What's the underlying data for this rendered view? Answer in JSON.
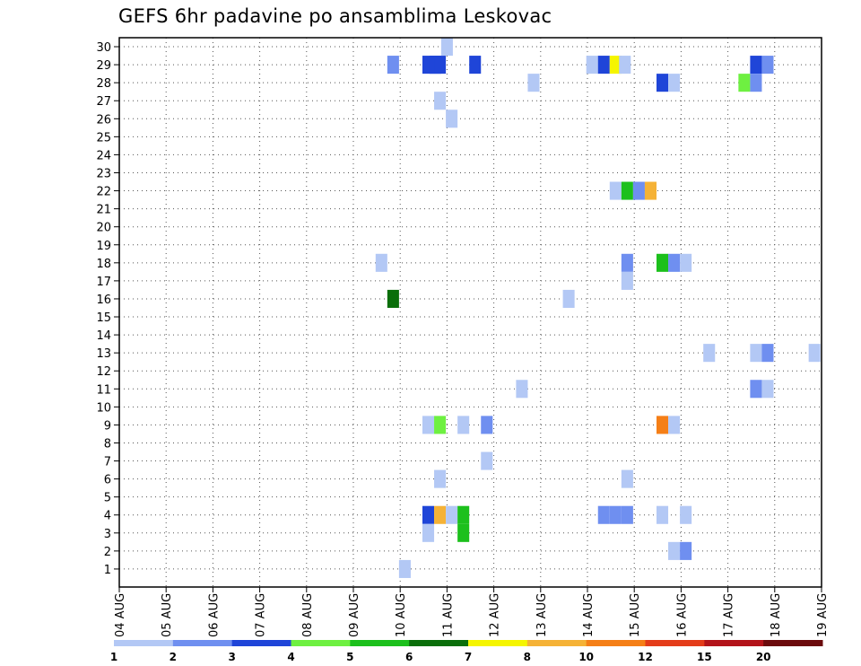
{
  "chart_data": {
    "type": "heatmap",
    "title": "GEFS 6hr padavine po ansamblima Leskovac",
    "x_ticks": [
      "04 AUG",
      "05 AUG",
      "06 AUG",
      "07 AUG",
      "08 AUG",
      "09 AUG",
      "10 AUG",
      "11 AUG",
      "12 AUG",
      "13 AUG",
      "14 AUG",
      "15 AUG",
      "16 AUG",
      "17 AUG",
      "18 AUG",
      "19 AUG"
    ],
    "y_ticks": [
      1,
      2,
      3,
      4,
      5,
      6,
      7,
      8,
      9,
      10,
      11,
      12,
      13,
      14,
      15,
      16,
      17,
      18,
      19,
      20,
      21,
      22,
      23,
      24,
      25,
      26,
      27,
      28,
      29,
      30
    ],
    "x_range_days": [
      0,
      15
    ],
    "y_range": [
      0,
      30.5
    ],
    "grid": true,
    "colorbar": {
      "labels": [
        "1",
        "2",
        "3",
        "4",
        "5",
        "6",
        "7",
        "8",
        "10",
        "12",
        "15",
        "20"
      ],
      "colors": [
        "#b3c8f5",
        "#6f8ff0",
        "#1f45d8",
        "#6ef041",
        "#1cc01c",
        "#0a6e0a",
        "#f5f500",
        "#f5b236",
        "#f57f17",
        "#e43c1a",
        "#b3141a",
        "#6b0b0d"
      ]
    },
    "cells": [
      {
        "day": 7.0,
        "member": 30,
        "color": "#b3c8f5"
      },
      {
        "day": 5.85,
        "member": 29,
        "color": "#6f8ff0"
      },
      {
        "day": 6.6,
        "member": 29,
        "color": "#1f45d8"
      },
      {
        "day": 6.75,
        "member": 29,
        "color": "#1f45d8"
      },
      {
        "day": 6.85,
        "member": 29,
        "color": "#1f45d8"
      },
      {
        "day": 7.6,
        "member": 29,
        "color": "#1f45d8"
      },
      {
        "day": 10.1,
        "member": 29,
        "color": "#b3c8f5"
      },
      {
        "day": 10.35,
        "member": 29,
        "color": "#1f45d8"
      },
      {
        "day": 10.6,
        "member": 29,
        "color": "#f5f500"
      },
      {
        "day": 10.8,
        "member": 29,
        "color": "#b3c8f5"
      },
      {
        "day": 13.6,
        "member": 29,
        "color": "#1f45d8"
      },
      {
        "day": 13.85,
        "member": 29,
        "color": "#6f8ff0"
      },
      {
        "day": 8.85,
        "member": 28,
        "color": "#b3c8f5"
      },
      {
        "day": 11.6,
        "member": 28,
        "color": "#1f45d8"
      },
      {
        "day": 11.85,
        "member": 28,
        "color": "#b3c8f5"
      },
      {
        "day": 13.35,
        "member": 28,
        "color": "#6ef041"
      },
      {
        "day": 13.6,
        "member": 28,
        "color": "#6f8ff0"
      },
      {
        "day": 6.85,
        "member": 27,
        "color": "#b3c8f5"
      },
      {
        "day": 7.1,
        "member": 26,
        "color": "#b3c8f5"
      },
      {
        "day": 10.6,
        "member": 22,
        "color": "#b3c8f5"
      },
      {
        "day": 10.85,
        "member": 22,
        "color": "#1cc01c"
      },
      {
        "day": 11.1,
        "member": 22,
        "color": "#6f8ff0"
      },
      {
        "day": 11.35,
        "member": 22,
        "color": "#f5b236"
      },
      {
        "day": 5.6,
        "member": 18,
        "color": "#b3c8f5"
      },
      {
        "day": 10.85,
        "member": 18,
        "color": "#6f8ff0"
      },
      {
        "day": 11.6,
        "member": 18,
        "color": "#1cc01c"
      },
      {
        "day": 11.85,
        "member": 18,
        "color": "#6f8ff0"
      },
      {
        "day": 12.1,
        "member": 18,
        "color": "#b3c8f5"
      },
      {
        "day": 10.85,
        "member": 17,
        "color": "#b3c8f5"
      },
      {
        "day": 5.85,
        "member": 16,
        "color": "#0a6e0a"
      },
      {
        "day": 9.6,
        "member": 16,
        "color": "#b3c8f5"
      },
      {
        "day": 12.6,
        "member": 13,
        "color": "#b3c8f5"
      },
      {
        "day": 13.6,
        "member": 13,
        "color": "#b3c8f5"
      },
      {
        "day": 13.85,
        "member": 13,
        "color": "#6f8ff0"
      },
      {
        "day": 14.85,
        "member": 13,
        "color": "#b3c8f5"
      },
      {
        "day": 8.6,
        "member": 11,
        "color": "#b3c8f5"
      },
      {
        "day": 13.6,
        "member": 11,
        "color": "#6f8ff0"
      },
      {
        "day": 13.85,
        "member": 11,
        "color": "#b3c8f5"
      },
      {
        "day": 6.6,
        "member": 9,
        "color": "#b3c8f5"
      },
      {
        "day": 6.85,
        "member": 9,
        "color": "#6ef041"
      },
      {
        "day": 7.35,
        "member": 9,
        "color": "#b3c8f5"
      },
      {
        "day": 7.85,
        "member": 9,
        "color": "#6f8ff0"
      },
      {
        "day": 11.6,
        "member": 9,
        "color": "#f57f17"
      },
      {
        "day": 11.85,
        "member": 9,
        "color": "#b3c8f5"
      },
      {
        "day": 7.85,
        "member": 7,
        "color": "#b3c8f5"
      },
      {
        "day": 6.85,
        "member": 6,
        "color": "#b3c8f5"
      },
      {
        "day": 10.85,
        "member": 6,
        "color": "#b3c8f5"
      },
      {
        "day": 6.6,
        "member": 4,
        "color": "#1f45d8"
      },
      {
        "day": 6.85,
        "member": 4,
        "color": "#f5b236"
      },
      {
        "day": 7.1,
        "member": 4,
        "color": "#b3c8f5"
      },
      {
        "day": 7.35,
        "member": 4,
        "color": "#1cc01c"
      },
      {
        "day": 10.35,
        "member": 4,
        "color": "#6f8ff0"
      },
      {
        "day": 10.6,
        "member": 4,
        "color": "#6f8ff0"
      },
      {
        "day": 10.85,
        "member": 4,
        "color": "#6f8ff0"
      },
      {
        "day": 11.6,
        "member": 4,
        "color": "#b3c8f5"
      },
      {
        "day": 12.1,
        "member": 4,
        "color": "#b3c8f5"
      },
      {
        "day": 6.6,
        "member": 3,
        "color": "#b3c8f5"
      },
      {
        "day": 7.35,
        "member": 3,
        "color": "#1cc01c"
      },
      {
        "day": 11.85,
        "member": 2,
        "color": "#b3c8f5"
      },
      {
        "day": 12.1,
        "member": 2,
        "color": "#6f8ff0"
      },
      {
        "day": 6.1,
        "member": 1,
        "color": "#b3c8f5"
      }
    ]
  }
}
